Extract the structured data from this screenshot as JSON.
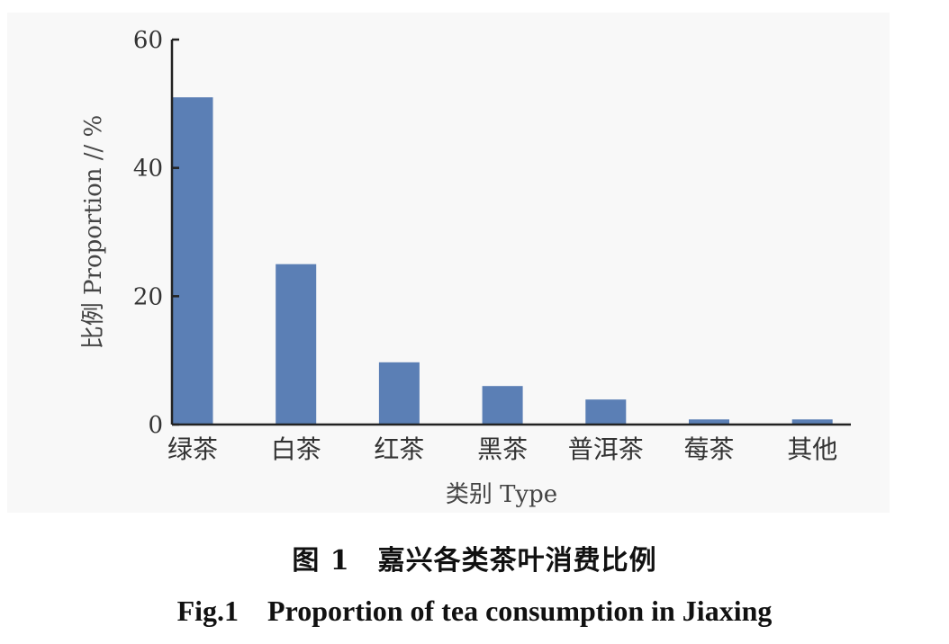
{
  "chart_data": {
    "type": "bar",
    "categories": [
      "绿茶",
      "白茶",
      "红茶",
      "黑茶",
      "普洱茶",
      "莓茶",
      "其他"
    ],
    "values": [
      51,
      25,
      9.7,
      6,
      3.9,
      0.8,
      0.8
    ],
    "xlabel": "类别 Type",
    "ylabel": "比例 Proportion // %",
    "ylim": [
      0,
      60
    ],
    "yticks": [
      0,
      20,
      40,
      60
    ],
    "bar_color": "#5b7fb5",
    "grid": false
  },
  "caption": {
    "cn": "图 1　嘉兴各类茶叶消费比例",
    "en": "Fig.1　Proportion of tea consumption in Jiaxing"
  }
}
